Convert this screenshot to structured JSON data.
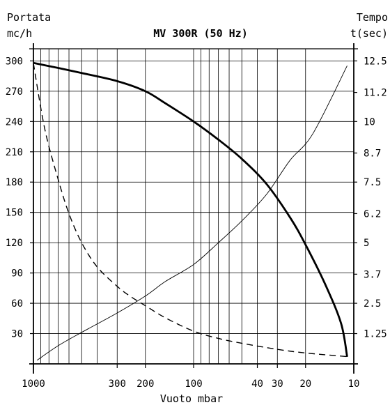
{
  "chart_data": {
    "type": "line",
    "title": "MV 300R (50 Hz)",
    "left_axis_label": [
      "Portata",
      "mc/h"
    ],
    "right_axis_label": [
      "Tempo",
      "t(sec)"
    ],
    "xlabel": "Vuoto mbar",
    "x_scale": "log",
    "x_reversed": true,
    "xlim": [
      1000,
      10
    ],
    "x_ticks": [
      1000,
      300,
      200,
      100,
      40,
      30,
      20,
      10
    ],
    "x_tick_labels": [
      "1000",
      "300",
      "200",
      "100",
      "40",
      "30",
      "20",
      "10"
    ],
    "left_ylim": [
      0,
      312
    ],
    "left_y_ticks": [
      30,
      60,
      90,
      120,
      150,
      180,
      210,
      240,
      270,
      300
    ],
    "left_y_tick_labels": [
      "30",
      "60",
      "90",
      "120",
      "150",
      "180",
      "210",
      "240",
      "270",
      "300"
    ],
    "right_ylim": [
      0,
      13
    ],
    "right_y_ticks": [
      1.25,
      2.5,
      3.7,
      5,
      6.2,
      7.5,
      8.7,
      10,
      11.2,
      12.5
    ],
    "right_y_tick_labels": [
      "1.25",
      "2.5",
      "3.7",
      "5",
      "6.2",
      "7.5",
      "8.7",
      "10",
      "11.2",
      "12.5"
    ],
    "grid": true,
    "series": [
      {
        "axis": "left",
        "style": "thick-solid",
        "x": [
          1000,
          700,
          500,
          300,
          200,
          150,
          100,
          70,
          50,
          35,
          25,
          20,
          15,
          12,
          11
        ],
        "y": [
          298,
          293,
          288,
          280,
          270,
          258,
          240,
          222,
          203,
          178,
          145,
          118,
          78,
          40,
          7
        ]
      },
      {
        "axis": "right",
        "style": "dashed",
        "x": [
          1000,
          850,
          700,
          600,
          500,
          400,
          300,
          250,
          200,
          150,
          100,
          70,
          50,
          30,
          20,
          11
        ],
        "y": [
          12.4,
          9.7,
          7.6,
          6.2,
          5.0,
          4.0,
          3.2,
          2.8,
          2.4,
          1.9,
          1.35,
          1.05,
          0.85,
          0.6,
          0.45,
          0.3
        ]
      },
      {
        "axis": "right",
        "style": "thin-solid",
        "x": [
          950,
          700,
          500,
          300,
          200,
          150,
          100,
          70,
          50,
          35,
          25,
          18,
          11
        ],
        "y": [
          0.15,
          0.75,
          1.3,
          2.1,
          2.8,
          3.4,
          4.1,
          5.0,
          5.9,
          7.0,
          8.4,
          9.5,
          12.3
        ]
      }
    ]
  }
}
